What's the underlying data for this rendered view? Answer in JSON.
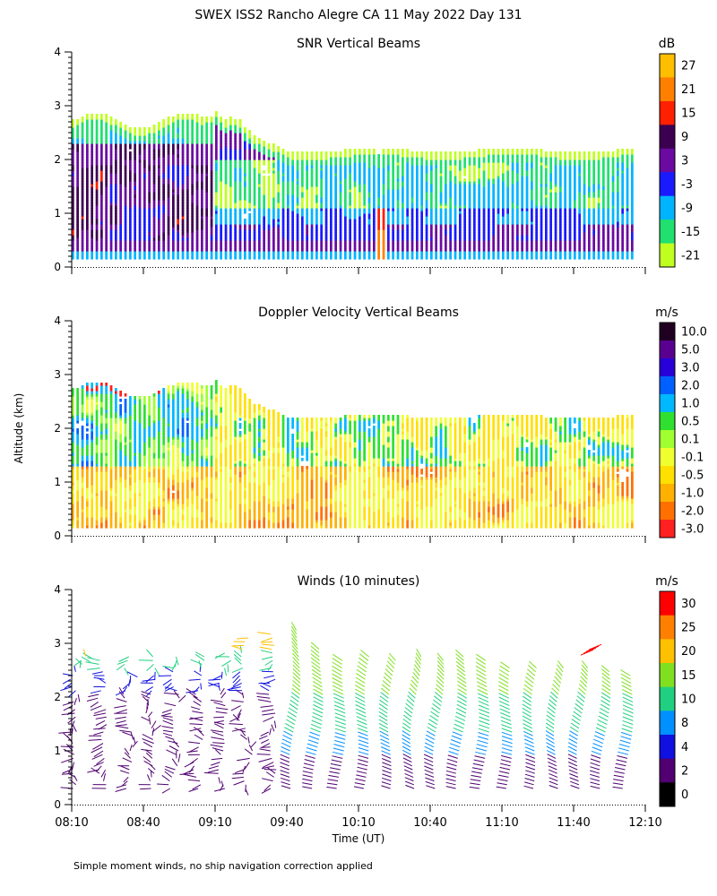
{
  "figure": {
    "title": "SWEX ISS2 Rancho Alegre CA  11 May 2022 Day 131",
    "ylabel": "Altitude (km)",
    "xlabel": "Time (UT)",
    "footnote": "Simple moment winds, no ship navigation correction applied",
    "time_ticks": [
      "08:10",
      "08:40",
      "09:10",
      "09:40",
      "10:10",
      "10:40",
      "11:10",
      "11:40",
      "12:10"
    ],
    "y_ticks": [
      "0",
      "1",
      "2",
      "3",
      "4"
    ]
  },
  "chart_data": [
    {
      "type": "heatmap",
      "title": "SNR Vertical Beams",
      "unit": "dB",
      "xlabel": "Time (UT)",
      "ylabel": "Altitude (km)",
      "xlim": [
        "08:10",
        "12:10"
      ],
      "ylim": [
        0,
        4
      ],
      "colorbar_labels": [
        "27",
        "21",
        "15",
        "9",
        "3",
        "-3",
        "-9",
        "-15",
        "-21"
      ],
      "colorbar_colors": [
        "#ffbf00",
        "#ff8000",
        "#ff2000",
        "#3c0050",
        "#6a0aa0",
        "#1a1aff",
        "#00b4ff",
        "#20e070",
        "#c0ff20"
      ],
      "data_top_km_first_hour": 2.7,
      "data_top_km_late": 2.15,
      "data_bottom_km": 0.15
    },
    {
      "type": "heatmap",
      "title": "Doppler Velocity Vertical Beams",
      "unit": "m/s",
      "xlabel": "Time (UT)",
      "ylabel": "Altitude (km)",
      "xlim": [
        "08:10",
        "12:10"
      ],
      "ylim": [
        0,
        4
      ],
      "colorbar_labels": [
        "10.0",
        "5.0",
        "3.0",
        "2.0",
        "1.0",
        "0.5",
        "0.1",
        "-0.1",
        "-0.5",
        "-1.0",
        "-2.0",
        "-3.0"
      ],
      "colorbar_colors": [
        "#200020",
        "#5a0090",
        "#2800d8",
        "#0060ff",
        "#00b8ff",
        "#30e030",
        "#a0ff30",
        "#f0ff30",
        "#ffe000",
        "#ffb000",
        "#ff7000",
        "#ff2020"
      ],
      "data_top_km_first_hour": 2.7,
      "data_top_km_late": 2.2,
      "data_bottom_km": 0.15
    },
    {
      "type": "scatter",
      "title": "Winds (10 minutes)",
      "unit": "m/s",
      "xlabel": "Time (UT)",
      "ylabel": "Altitude (km)",
      "xlim": [
        "08:10",
        "12:10"
      ],
      "ylim": [
        0,
        4
      ],
      "colorbar_labels": [
        "30",
        "25",
        "20",
        "15",
        "10",
        "8",
        "4",
        "2",
        "0"
      ],
      "colorbar_colors": [
        "#ff0000",
        "#ff8000",
        "#ffc000",
        "#80e020",
        "#20d080",
        "#0090ff",
        "#1010e0",
        "#500070",
        "#000000"
      ],
      "profile_times_min_after_0810": [
        0,
        10,
        20,
        30,
        40,
        50,
        60,
        70,
        80,
        90,
        100,
        110,
        120,
        130,
        140,
        150,
        160,
        170,
        180,
        190,
        200,
        210,
        220,
        230
      ],
      "profile_top_km": [
        2.95,
        2.7,
        2.75,
        2.8,
        2.8,
        2.8,
        2.85,
        3.1,
        3.2,
        3.25,
        2.9,
        2.7,
        2.75,
        2.7,
        2.75,
        2.7,
        2.75,
        2.7,
        2.6,
        2.6,
        2.55,
        2.6,
        2.5,
        2.45
      ]
    }
  ]
}
